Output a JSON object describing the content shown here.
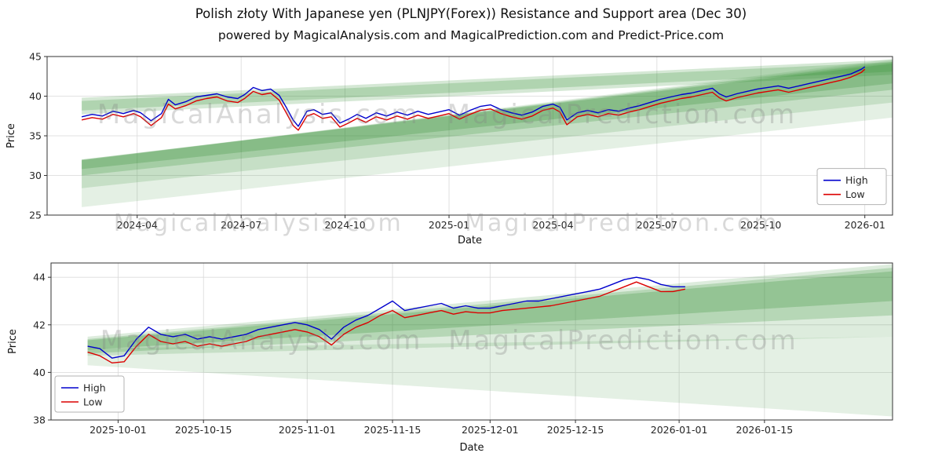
{
  "header": {
    "title": "Polish złoty With Japanese yen (PLNJPY(Forex)) Resistance and Support area (Dec 30)",
    "subtitle": "powered by MagicalAnalysis.com and MagicalPrediction.com and Predict-Price.com"
  },
  "colors": {
    "high_line": "#0000cd",
    "low_line": "#dc0000",
    "band_green": "#2e8b2e",
    "grid": "#d9d9d9",
    "axis": "#333333",
    "tick_text": "#262626",
    "watermark": "rgba(128,128,128,0.30)"
  },
  "chart_data": [
    {
      "type": "line",
      "title": "",
      "xlabel": "Date",
      "ylabel": "Price",
      "grid": true,
      "ylim": [
        25,
        45
      ],
      "yticks": [
        25,
        30,
        35,
        40,
        45
      ],
      "xlim": [
        0.4,
        24.8
      ],
      "x_unit": "months since 2024-01",
      "xticks": [
        {
          "value": 3,
          "label": "2024-04"
        },
        {
          "value": 6,
          "label": "2024-07"
        },
        {
          "value": 9,
          "label": "2024-10"
        },
        {
          "value": 12,
          "label": "2025-01"
        },
        {
          "value": 15,
          "label": "2025-04"
        },
        {
          "value": 18,
          "label": "2025-07"
        },
        {
          "value": 21,
          "label": "2025-10"
        },
        {
          "value": 24,
          "label": "2026-01"
        }
      ],
      "legend": {
        "position": "right"
      },
      "watermarks": [
        {
          "text": "MagicalAnalysis.com",
          "fx": 0.25,
          "fy": 0.42,
          "size": 34
        },
        {
          "text": "MagicalPrediction.com",
          "fx": 0.68,
          "fy": 0.42,
          "size": 34
        },
        {
          "text": "MagicalAnalysis.com",
          "fx": 0.25,
          "fy": 1.1,
          "size": 30
        },
        {
          "text": "MagicalPrediction.com",
          "fx": 0.68,
          "fy": 1.1,
          "size": 30
        }
      ],
      "x": [
        1.4,
        1.7,
        2.0,
        2.3,
        2.6,
        2.9,
        3.1,
        3.4,
        3.7,
        3.9,
        4.1,
        4.4,
        4.7,
        5.0,
        5.3,
        5.6,
        5.9,
        6.1,
        6.35,
        6.6,
        6.85,
        7.1,
        7.3,
        7.5,
        7.65,
        7.9,
        8.1,
        8.35,
        8.6,
        8.85,
        9.1,
        9.35,
        9.6,
        9.9,
        10.2,
        10.5,
        10.8,
        11.1,
        11.4,
        11.7,
        12.0,
        12.3,
        12.6,
        12.9,
        13.2,
        13.5,
        13.8,
        14.1,
        14.4,
        14.7,
        15.0,
        15.2,
        15.4,
        15.7,
        16.0,
        16.3,
        16.6,
        16.9,
        17.2,
        17.5,
        17.8,
        18.1,
        18.4,
        18.7,
        19.0,
        19.3,
        19.6,
        19.8,
        20.0,
        20.3,
        20.6,
        20.9,
        21.2,
        21.5,
        21.8,
        22.1,
        22.4,
        22.7,
        23.0,
        23.3,
        23.6,
        23.9,
        24.0
      ],
      "series": [
        {
          "name": "High",
          "color": "#0000cd",
          "values": [
            37.4,
            37.7,
            37.5,
            38.1,
            37.8,
            38.2,
            37.9,
            36.9,
            37.8,
            39.6,
            38.9,
            39.3,
            39.9,
            40.1,
            40.3,
            39.9,
            39.7,
            40.2,
            41.1,
            40.7,
            40.9,
            40.1,
            38.6,
            37.0,
            36.2,
            38.1,
            38.3,
            37.7,
            37.9,
            36.6,
            37.1,
            37.7,
            37.2,
            37.9,
            37.5,
            38.0,
            37.6,
            38.1,
            37.7,
            38.0,
            38.3,
            37.6,
            38.2,
            38.7,
            38.9,
            38.3,
            37.9,
            37.6,
            38.0,
            38.7,
            39.0,
            38.6,
            37.0,
            37.9,
            38.2,
            37.9,
            38.3,
            38.1,
            38.5,
            38.8,
            39.2,
            39.6,
            39.9,
            40.2,
            40.4,
            40.7,
            41.0,
            40.3,
            39.9,
            40.3,
            40.6,
            40.9,
            41.1,
            41.3,
            41.0,
            41.3,
            41.6,
            41.9,
            42.2,
            42.5,
            42.8,
            43.4,
            43.7
          ]
        },
        {
          "name": "Low",
          "color": "#dc0000",
          "values": [
            37.0,
            37.3,
            37.1,
            37.7,
            37.4,
            37.8,
            37.4,
            36.3,
            37.3,
            39.0,
            38.4,
            38.8,
            39.4,
            39.7,
            39.9,
            39.4,
            39.2,
            39.7,
            40.6,
            40.2,
            40.4,
            39.5,
            37.9,
            36.3,
            35.7,
            37.5,
            37.8,
            37.2,
            37.4,
            36.1,
            36.6,
            37.2,
            36.7,
            37.4,
            37.0,
            37.5,
            37.1,
            37.6,
            37.2,
            37.5,
            37.8,
            37.1,
            37.7,
            38.2,
            38.4,
            37.8,
            37.4,
            37.1,
            37.5,
            38.2,
            38.5,
            38.0,
            36.4,
            37.4,
            37.7,
            37.4,
            37.8,
            37.6,
            38.0,
            38.3,
            38.7,
            39.1,
            39.4,
            39.7,
            39.9,
            40.2,
            40.5,
            39.8,
            39.4,
            39.8,
            40.1,
            40.4,
            40.6,
            40.8,
            40.5,
            40.8,
            41.1,
            41.4,
            41.7,
            42.0,
            42.4,
            43.0,
            43.4
          ]
        }
      ],
      "bands": [
        {
          "color": "#2e8b2e",
          "opacity": 0.13,
          "x": [
            1.4,
            24.8
          ],
          "y_start": [
            26.0,
            31.9
          ],
          "y_end": [
            37.3,
            44.7
          ]
        },
        {
          "color": "#2e8b2e",
          "opacity": 0.16,
          "x": [
            1.4,
            24.8
          ],
          "y_start": [
            28.4,
            31.9
          ],
          "y_end": [
            39.2,
            44.5
          ]
        },
        {
          "color": "#2e8b2e",
          "opacity": 0.22,
          "x": [
            1.4,
            24.8
          ],
          "y_start": [
            30.0,
            32.0
          ],
          "y_end": [
            40.8,
            44.3
          ]
        },
        {
          "color": "#2e8b2e",
          "opacity": 0.25,
          "x": [
            1.4,
            24.8
          ],
          "y_start": [
            30.8,
            32.0
          ],
          "y_end": [
            41.6,
            44.1
          ]
        },
        {
          "color": "#2e8b2e",
          "opacity": 0.2,
          "x": [
            1.4,
            24.8
          ],
          "y_start": [
            37.7,
            39.8
          ],
          "y_end": [
            42.7,
            44.6
          ]
        },
        {
          "color": "#2e8b2e",
          "opacity": 0.22,
          "x": [
            1.4,
            24.8
          ],
          "y_start": [
            38.2,
            39.4
          ],
          "y_end": [
            43.1,
            44.3
          ]
        }
      ]
    },
    {
      "type": "line",
      "title": "",
      "xlabel": "Date",
      "ylabel": "Price",
      "grid": true,
      "ylim": [
        38,
        44.6
      ],
      "yticks": [
        38,
        40,
        42,
        44
      ],
      "xlim": [
        0,
        138
      ],
      "x_unit": "days since 2025-09-20",
      "xticks": [
        {
          "value": 11,
          "label": "2025-10-01"
        },
        {
          "value": 25,
          "label": "2025-10-15"
        },
        {
          "value": 42,
          "label": "2025-11-01"
        },
        {
          "value": 56,
          "label": "2025-11-15"
        },
        {
          "value": 72,
          "label": "2025-12-01"
        },
        {
          "value": 86,
          "label": "2025-12-15"
        },
        {
          "value": 103,
          "label": "2026-01-01"
        },
        {
          "value": 117,
          "label": "2026-01-15"
        }
      ],
      "legend": {
        "position": "lower-left"
      },
      "watermarks": [
        {
          "text": "MagicalAnalysis.com",
          "fx": 0.25,
          "fy": 0.55,
          "size": 34
        },
        {
          "text": "MagicalPrediction.com",
          "fx": 0.68,
          "fy": 0.55,
          "size": 34
        }
      ],
      "x": [
        6,
        8,
        10,
        12,
        14,
        16,
        18,
        20,
        22,
        24,
        26,
        28,
        30,
        32,
        34,
        36,
        38,
        40,
        42,
        44,
        46,
        48,
        50,
        52,
        54,
        56,
        58,
        60,
        62,
        64,
        66,
        68,
        70,
        72,
        74,
        76,
        78,
        80,
        82,
        84,
        86,
        88,
        90,
        92,
        94,
        96,
        98,
        100,
        102,
        104
      ],
      "series": [
        {
          "name": "High",
          "color": "#0000cd",
          "values": [
            41.1,
            41.0,
            40.6,
            40.7,
            41.4,
            41.9,
            41.6,
            41.5,
            41.6,
            41.4,
            41.5,
            41.4,
            41.5,
            41.6,
            41.8,
            41.9,
            42.0,
            42.1,
            42.0,
            41.8,
            41.4,
            41.9,
            42.2,
            42.4,
            42.7,
            43.0,
            42.6,
            42.7,
            42.8,
            42.9,
            42.7,
            42.8,
            42.7,
            42.7,
            42.8,
            42.9,
            43.0,
            43.0,
            43.1,
            43.2,
            43.3,
            43.4,
            43.5,
            43.7,
            43.9,
            44.0,
            43.9,
            43.7,
            43.6,
            43.6
          ]
        },
        {
          "name": "Low",
          "color": "#dc0000",
          "values": [
            40.85,
            40.7,
            40.4,
            40.45,
            41.1,
            41.6,
            41.3,
            41.2,
            41.3,
            41.1,
            41.2,
            41.1,
            41.2,
            41.3,
            41.5,
            41.6,
            41.7,
            41.8,
            41.7,
            41.5,
            41.15,
            41.6,
            41.9,
            42.1,
            42.4,
            42.6,
            42.3,
            42.4,
            42.5,
            42.6,
            42.45,
            42.55,
            42.5,
            42.5,
            42.6,
            42.65,
            42.7,
            42.75,
            42.8,
            42.9,
            43.0,
            43.1,
            43.2,
            43.4,
            43.6,
            43.8,
            43.6,
            43.4,
            43.4,
            43.5
          ]
        }
      ],
      "bands": [
        {
          "color": "#2e8b2e",
          "opacity": 0.13,
          "x": [
            6,
            138
          ],
          "y_start": [
            40.3,
            41.0
          ],
          "y_end": [
            38.15,
            41.5
          ]
        },
        {
          "color": "#2e8b2e",
          "opacity": 0.16,
          "x": [
            6,
            138
          ],
          "y_start": [
            40.7,
            41.5
          ],
          "y_end": [
            41.5,
            44.55
          ]
        },
        {
          "color": "#2e8b2e",
          "opacity": 0.22,
          "x": [
            6,
            138
          ],
          "y_start": [
            40.8,
            41.4
          ],
          "y_end": [
            42.4,
            44.4
          ]
        },
        {
          "color": "#2e8b2e",
          "opacity": 0.25,
          "x": [
            6,
            138
          ],
          "y_start": [
            40.95,
            41.35
          ],
          "y_end": [
            43.0,
            44.25
          ]
        }
      ]
    }
  ]
}
